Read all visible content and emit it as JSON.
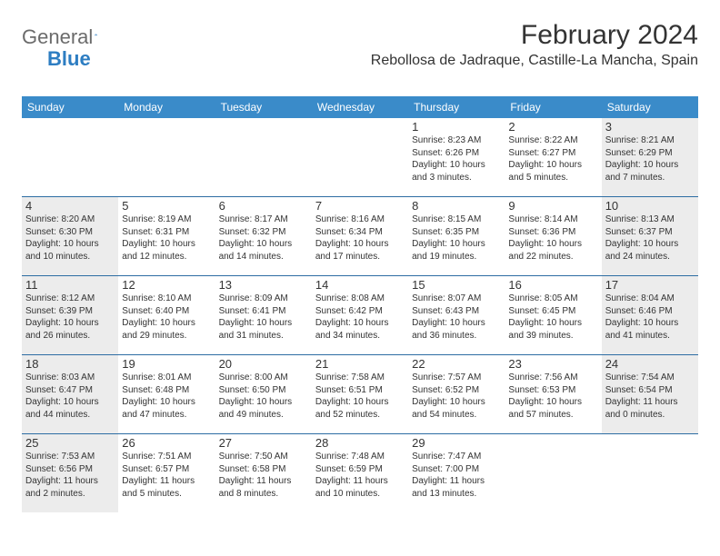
{
  "brand": {
    "name_part1": "General",
    "name_part2": "Blue"
  },
  "title": "February 2024",
  "location": "Rebollosa de Jadraque, Castille-La Mancha, Spain",
  "colors": {
    "header_bg": "#3a8bc9",
    "header_text": "#ffffff",
    "border": "#2d6da3",
    "shaded": "#ececec",
    "text": "#333333",
    "brand_gray": "#6b6b6b",
    "brand_blue": "#2d7dc2"
  },
  "day_names": [
    "Sunday",
    "Monday",
    "Tuesday",
    "Wednesday",
    "Thursday",
    "Friday",
    "Saturday"
  ],
  "weeks": [
    [
      {
        "day": "",
        "sunrise": "",
        "sunset": "",
        "daylight": "",
        "shaded": false
      },
      {
        "day": "",
        "sunrise": "",
        "sunset": "",
        "daylight": "",
        "shaded": false
      },
      {
        "day": "",
        "sunrise": "",
        "sunset": "",
        "daylight": "",
        "shaded": false
      },
      {
        "day": "",
        "sunrise": "",
        "sunset": "",
        "daylight": "",
        "shaded": false
      },
      {
        "day": "1",
        "sunrise": "Sunrise: 8:23 AM",
        "sunset": "Sunset: 6:26 PM",
        "daylight": "Daylight: 10 hours and 3 minutes.",
        "shaded": false
      },
      {
        "day": "2",
        "sunrise": "Sunrise: 8:22 AM",
        "sunset": "Sunset: 6:27 PM",
        "daylight": "Daylight: 10 hours and 5 minutes.",
        "shaded": false
      },
      {
        "day": "3",
        "sunrise": "Sunrise: 8:21 AM",
        "sunset": "Sunset: 6:29 PM",
        "daylight": "Daylight: 10 hours and 7 minutes.",
        "shaded": true
      }
    ],
    [
      {
        "day": "4",
        "sunrise": "Sunrise: 8:20 AM",
        "sunset": "Sunset: 6:30 PM",
        "daylight": "Daylight: 10 hours and 10 minutes.",
        "shaded": true
      },
      {
        "day": "5",
        "sunrise": "Sunrise: 8:19 AM",
        "sunset": "Sunset: 6:31 PM",
        "daylight": "Daylight: 10 hours and 12 minutes.",
        "shaded": false
      },
      {
        "day": "6",
        "sunrise": "Sunrise: 8:17 AM",
        "sunset": "Sunset: 6:32 PM",
        "daylight": "Daylight: 10 hours and 14 minutes.",
        "shaded": false
      },
      {
        "day": "7",
        "sunrise": "Sunrise: 8:16 AM",
        "sunset": "Sunset: 6:34 PM",
        "daylight": "Daylight: 10 hours and 17 minutes.",
        "shaded": false
      },
      {
        "day": "8",
        "sunrise": "Sunrise: 8:15 AM",
        "sunset": "Sunset: 6:35 PM",
        "daylight": "Daylight: 10 hours and 19 minutes.",
        "shaded": false
      },
      {
        "day": "9",
        "sunrise": "Sunrise: 8:14 AM",
        "sunset": "Sunset: 6:36 PM",
        "daylight": "Daylight: 10 hours and 22 minutes.",
        "shaded": false
      },
      {
        "day": "10",
        "sunrise": "Sunrise: 8:13 AM",
        "sunset": "Sunset: 6:37 PM",
        "daylight": "Daylight: 10 hours and 24 minutes.",
        "shaded": true
      }
    ],
    [
      {
        "day": "11",
        "sunrise": "Sunrise: 8:12 AM",
        "sunset": "Sunset: 6:39 PM",
        "daylight": "Daylight: 10 hours and 26 minutes.",
        "shaded": true
      },
      {
        "day": "12",
        "sunrise": "Sunrise: 8:10 AM",
        "sunset": "Sunset: 6:40 PM",
        "daylight": "Daylight: 10 hours and 29 minutes.",
        "shaded": false
      },
      {
        "day": "13",
        "sunrise": "Sunrise: 8:09 AM",
        "sunset": "Sunset: 6:41 PM",
        "daylight": "Daylight: 10 hours and 31 minutes.",
        "shaded": false
      },
      {
        "day": "14",
        "sunrise": "Sunrise: 8:08 AM",
        "sunset": "Sunset: 6:42 PM",
        "daylight": "Daylight: 10 hours and 34 minutes.",
        "shaded": false
      },
      {
        "day": "15",
        "sunrise": "Sunrise: 8:07 AM",
        "sunset": "Sunset: 6:43 PM",
        "daylight": "Daylight: 10 hours and 36 minutes.",
        "shaded": false
      },
      {
        "day": "16",
        "sunrise": "Sunrise: 8:05 AM",
        "sunset": "Sunset: 6:45 PM",
        "daylight": "Daylight: 10 hours and 39 minutes.",
        "shaded": false
      },
      {
        "day": "17",
        "sunrise": "Sunrise: 8:04 AM",
        "sunset": "Sunset: 6:46 PM",
        "daylight": "Daylight: 10 hours and 41 minutes.",
        "shaded": true
      }
    ],
    [
      {
        "day": "18",
        "sunrise": "Sunrise: 8:03 AM",
        "sunset": "Sunset: 6:47 PM",
        "daylight": "Daylight: 10 hours and 44 minutes.",
        "shaded": true
      },
      {
        "day": "19",
        "sunrise": "Sunrise: 8:01 AM",
        "sunset": "Sunset: 6:48 PM",
        "daylight": "Daylight: 10 hours and 47 minutes.",
        "shaded": false
      },
      {
        "day": "20",
        "sunrise": "Sunrise: 8:00 AM",
        "sunset": "Sunset: 6:50 PM",
        "daylight": "Daylight: 10 hours and 49 minutes.",
        "shaded": false
      },
      {
        "day": "21",
        "sunrise": "Sunrise: 7:58 AM",
        "sunset": "Sunset: 6:51 PM",
        "daylight": "Daylight: 10 hours and 52 minutes.",
        "shaded": false
      },
      {
        "day": "22",
        "sunrise": "Sunrise: 7:57 AM",
        "sunset": "Sunset: 6:52 PM",
        "daylight": "Daylight: 10 hours and 54 minutes.",
        "shaded": false
      },
      {
        "day": "23",
        "sunrise": "Sunrise: 7:56 AM",
        "sunset": "Sunset: 6:53 PM",
        "daylight": "Daylight: 10 hours and 57 minutes.",
        "shaded": false
      },
      {
        "day": "24",
        "sunrise": "Sunrise: 7:54 AM",
        "sunset": "Sunset: 6:54 PM",
        "daylight": "Daylight: 11 hours and 0 minutes.",
        "shaded": true
      }
    ],
    [
      {
        "day": "25",
        "sunrise": "Sunrise: 7:53 AM",
        "sunset": "Sunset: 6:56 PM",
        "daylight": "Daylight: 11 hours and 2 minutes.",
        "shaded": true
      },
      {
        "day": "26",
        "sunrise": "Sunrise: 7:51 AM",
        "sunset": "Sunset: 6:57 PM",
        "daylight": "Daylight: 11 hours and 5 minutes.",
        "shaded": false
      },
      {
        "day": "27",
        "sunrise": "Sunrise: 7:50 AM",
        "sunset": "Sunset: 6:58 PM",
        "daylight": "Daylight: 11 hours and 8 minutes.",
        "shaded": false
      },
      {
        "day": "28",
        "sunrise": "Sunrise: 7:48 AM",
        "sunset": "Sunset: 6:59 PM",
        "daylight": "Daylight: 11 hours and 10 minutes.",
        "shaded": false
      },
      {
        "day": "29",
        "sunrise": "Sunrise: 7:47 AM",
        "sunset": "Sunset: 7:00 PM",
        "daylight": "Daylight: 11 hours and 13 minutes.",
        "shaded": false
      },
      {
        "day": "",
        "sunrise": "",
        "sunset": "",
        "daylight": "",
        "shaded": false
      },
      {
        "day": "",
        "sunrise": "",
        "sunset": "",
        "daylight": "",
        "shaded": false
      }
    ]
  ]
}
